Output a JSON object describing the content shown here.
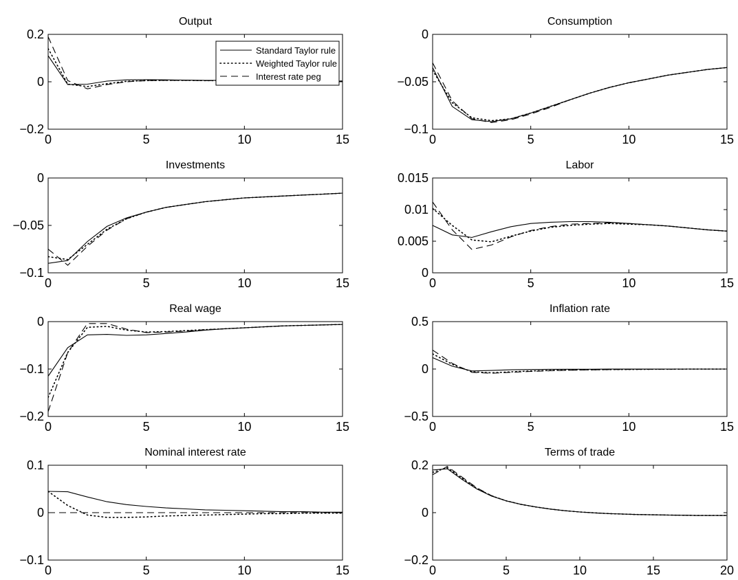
{
  "legend": {
    "entries": [
      {
        "label": "Standard Taylor rule",
        "style": "solid"
      },
      {
        "label": "Weighted Taylor rule",
        "style": "dotted"
      },
      {
        "label": "Interest rate peg",
        "style": "dashed"
      }
    ],
    "placement": "top-right of Output panel"
  },
  "chart_data": [
    {
      "type": "line",
      "title": "Output",
      "xlabel": "",
      "ylabel": "",
      "xlim": [
        0,
        15
      ],
      "ylim": [
        -0.2,
        0.2
      ],
      "xticks": [
        0,
        5,
        10,
        15
      ],
      "yticks": [
        -0.2,
        0,
        0.2
      ],
      "x": [
        0,
        1,
        2,
        3,
        4,
        5,
        6,
        7,
        8,
        9,
        10,
        11,
        12,
        13,
        14,
        15
      ],
      "series": [
        {
          "name": "Standard Taylor rule",
          "style": "solid",
          "values": [
            0.11,
            -0.012,
            -0.01,
            0.003,
            0.008,
            0.009,
            0.008,
            0.007,
            0.006,
            0.006,
            0.005,
            0.005,
            0.004,
            0.004,
            0.004,
            0.003
          ]
        },
        {
          "name": "Weighted Taylor rule",
          "style": "dotted",
          "values": [
            0.14,
            -0.01,
            -0.02,
            -0.008,
            0.002,
            0.005,
            0.006,
            0.006,
            0.005,
            0.005,
            0.005,
            0.004,
            0.004,
            0.004,
            0.003,
            0.003
          ]
        },
        {
          "name": "Interest rate peg",
          "style": "dashed",
          "values": [
            0.19,
            0.005,
            -0.03,
            -0.012,
            0,
            0.005,
            0.006,
            0.006,
            0.005,
            0.005,
            0.005,
            0.004,
            0.004,
            0.004,
            0.003,
            0.003
          ]
        }
      ]
    },
    {
      "type": "line",
      "title": "Consumption",
      "xlabel": "",
      "ylabel": "",
      "xlim": [
        0,
        15
      ],
      "ylim": [
        -0.1,
        0
      ],
      "xticks": [
        0,
        5,
        10,
        15
      ],
      "yticks": [
        -0.1,
        -0.05,
        0
      ],
      "x": [
        0,
        1,
        2,
        3,
        4,
        5,
        6,
        7,
        8,
        9,
        10,
        11,
        12,
        13,
        14,
        15
      ],
      "series": [
        {
          "name": "Standard Taylor rule",
          "style": "solid",
          "values": [
            -0.035,
            -0.076,
            -0.09,
            -0.092,
            -0.089,
            -0.083,
            -0.076,
            -0.069,
            -0.062,
            -0.056,
            -0.051,
            -0.047,
            -0.043,
            -0.04,
            -0.037,
            -0.035
          ]
        },
        {
          "name": "Weighted Taylor rule",
          "style": "dotted",
          "values": [
            -0.038,
            -0.072,
            -0.088,
            -0.091,
            -0.089,
            -0.083,
            -0.076,
            -0.069,
            -0.062,
            -0.056,
            -0.051,
            -0.047,
            -0.043,
            -0.04,
            -0.037,
            -0.035
          ]
        },
        {
          "name": "Interest rate peg",
          "style": "dashed",
          "values": [
            -0.03,
            -0.07,
            -0.089,
            -0.093,
            -0.09,
            -0.084,
            -0.077,
            -0.069,
            -0.062,
            -0.056,
            -0.051,
            -0.047,
            -0.043,
            -0.04,
            -0.037,
            -0.035
          ]
        }
      ]
    },
    {
      "type": "line",
      "title": "Investments",
      "xlabel": "",
      "ylabel": "",
      "xlim": [
        0,
        15
      ],
      "ylim": [
        -0.1,
        0
      ],
      "xticks": [
        0,
        5,
        10,
        15
      ],
      "yticks": [
        -0.1,
        -0.05,
        0
      ],
      "x": [
        0,
        1,
        2,
        3,
        4,
        5,
        6,
        7,
        8,
        9,
        10,
        11,
        12,
        13,
        14,
        15
      ],
      "series": [
        {
          "name": "Standard Taylor rule",
          "style": "solid",
          "values": [
            -0.09,
            -0.087,
            -0.067,
            -0.051,
            -0.042,
            -0.036,
            -0.031,
            -0.028,
            -0.025,
            -0.023,
            -0.021,
            -0.02,
            -0.019,
            -0.018,
            -0.017,
            -0.016
          ]
        },
        {
          "name": "Weighted Taylor rule",
          "style": "dotted",
          "values": [
            -0.083,
            -0.086,
            -0.07,
            -0.054,
            -0.043,
            -0.036,
            -0.031,
            -0.028,
            -0.025,
            -0.023,
            -0.021,
            -0.02,
            -0.019,
            -0.018,
            -0.017,
            -0.016
          ]
        },
        {
          "name": "Interest rate peg",
          "style": "dashed",
          "values": [
            -0.075,
            -0.092,
            -0.072,
            -0.055,
            -0.043,
            -0.036,
            -0.031,
            -0.028,
            -0.025,
            -0.023,
            -0.021,
            -0.02,
            -0.019,
            -0.018,
            -0.017,
            -0.016
          ]
        }
      ]
    },
    {
      "type": "line",
      "title": "Labor",
      "xlabel": "",
      "ylabel": "",
      "xlim": [
        0,
        15
      ],
      "ylim": [
        0,
        0.015
      ],
      "xticks": [
        0,
        5,
        10,
        15
      ],
      "yticks": [
        0,
        0.005,
        0.01,
        0.015
      ],
      "x": [
        0,
        1,
        2,
        3,
        4,
        5,
        6,
        7,
        8,
        9,
        10,
        11,
        12,
        13,
        14,
        15
      ],
      "series": [
        {
          "name": "Standard Taylor rule",
          "style": "solid",
          "values": [
            0.0075,
            0.006,
            0.0056,
            0.0065,
            0.0073,
            0.0078,
            0.008,
            0.0081,
            0.0081,
            0.008,
            0.0078,
            0.0076,
            0.0074,
            0.0071,
            0.0068,
            0.0066
          ]
        },
        {
          "name": "Weighted Taylor rule",
          "style": "dotted",
          "values": [
            0.0102,
            0.0075,
            0.0052,
            0.0049,
            0.0058,
            0.0066,
            0.0072,
            0.0075,
            0.0077,
            0.0078,
            0.0077,
            0.0076,
            0.0074,
            0.0071,
            0.0068,
            0.0066
          ]
        },
        {
          "name": "Interest rate peg",
          "style": "dashed",
          "values": [
            0.0112,
            0.0068,
            0.0037,
            0.0044,
            0.0057,
            0.0067,
            0.0073,
            0.0077,
            0.0078,
            0.0079,
            0.0078,
            0.0076,
            0.0074,
            0.0071,
            0.0068,
            0.0066
          ]
        }
      ]
    },
    {
      "type": "line",
      "title": "Real wage",
      "xlabel": "",
      "ylabel": "",
      "xlim": [
        0,
        15
      ],
      "ylim": [
        -0.2,
        0
      ],
      "xticks": [
        0,
        5,
        10,
        15
      ],
      "yticks": [
        -0.2,
        -0.1,
        0
      ],
      "x": [
        0,
        1,
        2,
        3,
        4,
        5,
        6,
        7,
        8,
        9,
        10,
        11,
        12,
        13,
        14,
        15
      ],
      "series": [
        {
          "name": "Standard Taylor rule",
          "style": "solid",
          "values": [
            -0.115,
            -0.055,
            -0.028,
            -0.027,
            -0.029,
            -0.028,
            -0.025,
            -0.022,
            -0.018,
            -0.015,
            -0.013,
            -0.011,
            -0.009,
            -0.008,
            -0.007,
            -0.006
          ]
        },
        {
          "name": "Weighted Taylor rule",
          "style": "dotted",
          "values": [
            -0.16,
            -0.065,
            -0.012,
            -0.01,
            -0.018,
            -0.022,
            -0.021,
            -0.019,
            -0.017,
            -0.015,
            -0.013,
            -0.011,
            -0.009,
            -0.008,
            -0.007,
            -0.006
          ]
        },
        {
          "name": "Interest rate peg",
          "style": "dashed",
          "values": [
            -0.19,
            -0.065,
            -0.004,
            -0.004,
            -0.016,
            -0.023,
            -0.022,
            -0.02,
            -0.017,
            -0.015,
            -0.013,
            -0.011,
            -0.009,
            -0.008,
            -0.007,
            -0.006
          ]
        }
      ]
    },
    {
      "type": "line",
      "title": "Inflation rate",
      "xlabel": "",
      "ylabel": "",
      "xlim": [
        0,
        15
      ],
      "ylim": [
        -0.5,
        0.5
      ],
      "xticks": [
        0,
        5,
        10,
        15
      ],
      "yticks": [
        -0.5,
        0,
        0.5
      ],
      "x": [
        0,
        1,
        2,
        3,
        4,
        5,
        6,
        7,
        8,
        9,
        10,
        11,
        12,
        13,
        14,
        15
      ],
      "series": [
        {
          "name": "Standard Taylor rule",
          "style": "solid",
          "values": [
            0.12,
            0.03,
            -0.02,
            -0.015,
            -0.008,
            -0.005,
            -0.003,
            -0.002,
            -0.002,
            -0.001,
            -0.001,
            -0.001,
            0,
            0,
            0,
            0
          ]
        },
        {
          "name": "Weighted Taylor rule",
          "style": "dotted",
          "values": [
            0.16,
            0.05,
            -0.03,
            -0.04,
            -0.03,
            -0.02,
            -0.015,
            -0.01,
            -0.008,
            -0.006,
            -0.004,
            -0.003,
            -0.002,
            -0.001,
            -0.001,
            0
          ]
        },
        {
          "name": "Interest rate peg",
          "style": "dashed",
          "values": [
            0.2,
            0.06,
            -0.035,
            -0.045,
            -0.035,
            -0.025,
            -0.018,
            -0.012,
            -0.009,
            -0.006,
            -0.004,
            -0.003,
            -0.002,
            -0.001,
            -0.001,
            0
          ]
        }
      ]
    },
    {
      "type": "line",
      "title": "Nominal interest rate",
      "xlabel": "",
      "ylabel": "",
      "xlim": [
        0,
        15
      ],
      "ylim": [
        -0.1,
        0.1
      ],
      "xticks": [
        0,
        5,
        10,
        15
      ],
      "yticks": [
        -0.1,
        0,
        0.1
      ],
      "x": [
        0,
        1,
        2,
        3,
        4,
        5,
        6,
        7,
        8,
        9,
        10,
        11,
        12,
        13,
        14,
        15
      ],
      "series": [
        {
          "name": "Standard Taylor rule",
          "style": "solid",
          "values": [
            0.045,
            0.044,
            0.033,
            0.023,
            0.017,
            0.013,
            0.01,
            0.008,
            0.006,
            0.005,
            0.004,
            0.003,
            0.002,
            0.002,
            0.001,
            0.001
          ]
        },
        {
          "name": "Weighted Taylor rule",
          "style": "dotted",
          "values": [
            0.045,
            0.015,
            -0.005,
            -0.01,
            -0.01,
            -0.009,
            -0.007,
            -0.006,
            -0.005,
            -0.004,
            -0.003,
            -0.002,
            -0.002,
            -0.001,
            -0.001,
            -0.001
          ]
        },
        {
          "name": "Interest rate peg",
          "style": "dashed",
          "values": [
            0,
            0,
            0,
            0,
            0,
            0,
            0,
            0,
            0,
            0,
            0,
            0,
            0,
            0,
            0,
            0
          ]
        }
      ]
    },
    {
      "type": "line",
      "title": "Terms of trade",
      "xlabel": "",
      "ylabel": "",
      "xlim": [
        0,
        20
      ],
      "ylim": [
        -0.2,
        0.2
      ],
      "xticks": [
        0,
        5,
        10,
        15,
        20
      ],
      "yticks": [
        -0.2,
        0,
        0.2
      ],
      "x": [
        0,
        1,
        2,
        3,
        4,
        5,
        6,
        7,
        8,
        9,
        10,
        11,
        12,
        13,
        14,
        15,
        16,
        17,
        18,
        19,
        20
      ],
      "series": [
        {
          "name": "Standard Taylor rule",
          "style": "solid",
          "values": [
            0.18,
            0.185,
            0.14,
            0.1,
            0.07,
            0.05,
            0.035,
            0.024,
            0.015,
            0.008,
            0.003,
            -0.001,
            -0.004,
            -0.006,
            -0.008,
            -0.009,
            -0.01,
            -0.011,
            -0.012,
            -0.012,
            -0.012
          ]
        },
        {
          "name": "Weighted Taylor rule",
          "style": "dotted",
          "values": [
            0.17,
            0.19,
            0.145,
            0.102,
            0.071,
            0.05,
            0.035,
            0.024,
            0.015,
            0.008,
            0.003,
            -0.001,
            -0.004,
            -0.006,
            -0.008,
            -0.009,
            -0.01,
            -0.011,
            -0.012,
            -0.012,
            -0.012
          ]
        },
        {
          "name": "Interest rate peg",
          "style": "dashed",
          "values": [
            0.16,
            0.195,
            0.15,
            0.105,
            0.072,
            0.05,
            0.035,
            0.024,
            0.015,
            0.008,
            0.003,
            -0.001,
            -0.004,
            -0.006,
            -0.008,
            -0.009,
            -0.01,
            -0.011,
            -0.012,
            -0.012,
            -0.012
          ]
        }
      ]
    }
  ]
}
